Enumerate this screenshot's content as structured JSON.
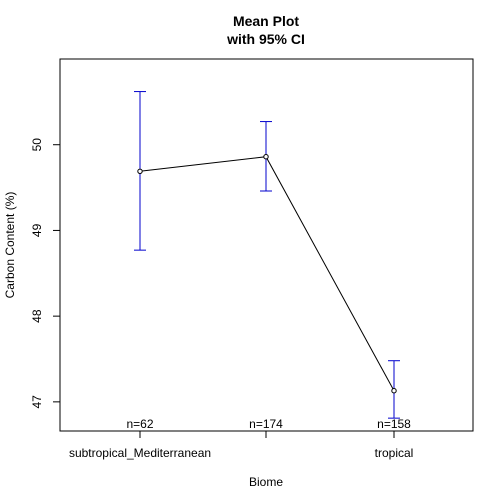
{
  "chart_data": {
    "type": "line",
    "title_line1": "Mean Plot",
    "title_line2": "with 95% CI",
    "xlabel": "Biome",
    "ylabel": "Carbon Content (%)",
    "categories": [
      "subtropical_Mediterranean",
      "",
      "tropical"
    ],
    "means": [
      49.69,
      49.86,
      47.13
    ],
    "ci_lower": [
      48.77,
      49.46,
      46.81
    ],
    "ci_upper": [
      50.62,
      50.27,
      47.48
    ],
    "counts": [
      "n=62",
      "n=174",
      "n=158"
    ],
    "yticks": [
      47,
      48,
      49,
      50
    ],
    "ytick_labels": [
      "47",
      "48",
      "49",
      "50"
    ],
    "ylim": [
      46.66,
      51.0
    ],
    "grid": false,
    "line_color": "#000000",
    "ci_color": "#0000cd"
  }
}
